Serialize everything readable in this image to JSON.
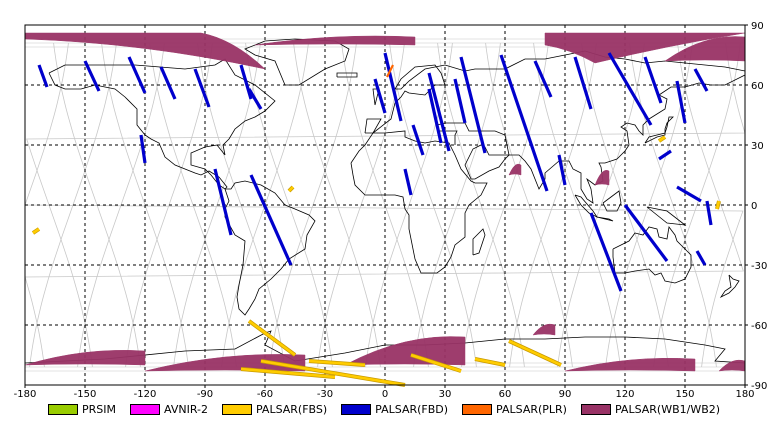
{
  "map": {
    "x_ticks": [
      "-180",
      "-150",
      "-120",
      "-90",
      "-60",
      "-30",
      "0",
      "30",
      "60",
      "90",
      "120",
      "150",
      "180"
    ],
    "y_ticks": [
      "90",
      "60",
      "30",
      "0",
      "-30",
      "-60",
      "-90"
    ],
    "x_range": [
      -180,
      180
    ],
    "y_range": [
      -90,
      90
    ],
    "grid": "dashed",
    "coastline_color": "#000000",
    "orbit_track_color": "#c8c8c8"
  },
  "legend": {
    "placement": "bottom",
    "items": [
      {
        "label": "PRSIM",
        "color": "#99cc00"
      },
      {
        "label": "AVNIR-2",
        "color": "#ff00ff"
      },
      {
        "label": "PALSAR(FBS)",
        "color": "#ffcc00"
      },
      {
        "label": "PALSAR(FBD)",
        "color": "#0000cc"
      },
      {
        "label": "PALSAR(PLR)",
        "color": "#ff6600"
      },
      {
        "label": "PALSAR(WB1/WB2)",
        "color": "#993366"
      }
    ]
  },
  "coverage": {
    "fbd_strips": [
      [
        -173,
        70,
        -169,
        59
      ],
      [
        -150,
        72,
        -143,
        57
      ],
      [
        -128,
        74,
        -120,
        56
      ],
      [
        -112,
        69,
        -105,
        53
      ],
      [
        -95,
        68,
        -88,
        49
      ],
      [
        -72,
        70,
        -67,
        53
      ],
      [
        -68,
        58,
        -62,
        48
      ],
      [
        -122,
        35,
        -120,
        21
      ],
      [
        -85,
        18,
        -77,
        -15
      ],
      [
        -67,
        15,
        -47,
        -30
      ],
      [
        -5,
        63,
        0,
        46
      ],
      [
        0,
        76,
        8,
        42
      ],
      [
        14,
        40,
        19,
        25
      ],
      [
        22,
        66,
        32,
        27
      ],
      [
        10,
        18,
        13,
        5
      ],
      [
        22,
        58,
        28,
        31
      ],
      [
        38,
        74,
        50,
        26
      ],
      [
        58,
        75,
        81,
        7
      ],
      [
        75,
        72,
        83,
        54
      ],
      [
        95,
        74,
        103,
        48
      ],
      [
        112,
        76,
        133,
        40
      ],
      [
        130,
        74,
        138,
        51
      ],
      [
        146,
        62,
        150,
        41
      ],
      [
        137,
        23,
        143,
        27
      ],
      [
        103,
        -4,
        118,
        -43
      ],
      [
        120,
        0,
        141,
        -28
      ],
      [
        146,
        9,
        158,
        2
      ],
      [
        156,
        -23,
        160,
        -30
      ],
      [
        155,
        68,
        161,
        57
      ],
      [
        161,
        2,
        163,
        -10
      ],
      [
        87,
        25,
        90,
        10
      ],
      [
        35,
        63,
        40,
        41
      ]
    ],
    "fbs_strips": [
      [
        -68,
        -58,
        -45,
        -75
      ],
      [
        -62,
        -78,
        10,
        -90
      ],
      [
        -72,
        -82,
        -25,
        -86
      ],
      [
        13,
        -75,
        38,
        -83
      ],
      [
        45,
        -77,
        60,
        -80
      ],
      [
        62,
        -68,
        88,
        -80
      ],
      [
        -38,
        -78,
        -10,
        -80
      ],
      [
        -176,
        -14,
        -173,
        -12
      ],
      [
        166,
        -2,
        167,
        2
      ],
      [
        137,
        32,
        140,
        34
      ],
      [
        -48,
        7,
        -46,
        9
      ]
    ],
    "plr_strips": [
      [
        1,
        64,
        4,
        70
      ]
    ],
    "wb_patches": [
      {
        "lon0": -180,
        "lon1": -92,
        "lat_top": 86,
        "lat_bot": 83,
        "drop_lat": 68,
        "drop_lon": -60
      },
      {
        "lon0": -65,
        "lon1": 15,
        "lat_top": 84,
        "lat_bot": 80
      },
      {
        "lon0": 80,
        "lon1": 180,
        "lat_top": 86,
        "lat_bot": 80,
        "drop_lat": 71,
        "drop_lon": 105
      },
      {
        "lon0": 140,
        "lon1": 180,
        "lat_top": 84,
        "lat_bot": 72
      },
      {
        "lon0": -180,
        "lon1": -120,
        "lat_top": -73,
        "lat_bot": -80
      },
      {
        "lon0": -120,
        "lon1": -40,
        "lat_top": -75,
        "lat_bot": -83
      },
      {
        "lon0": -20,
        "lon1": 40,
        "lat_top": -66,
        "lat_bot": -80
      },
      {
        "lon0": 90,
        "lon1": 155,
        "lat_top": -77,
        "lat_bot": -83
      },
      {
        "lon0": 167,
        "lon1": 180,
        "lat_top": -78,
        "lat_bot": -83
      },
      {
        "lon0": 74,
        "lon1": 85,
        "lat_top": -60,
        "lat_bot": -65
      },
      {
        "lon0": 62,
        "lon1": 68,
        "lat_top": 20,
        "lat_bot": 15
      },
      {
        "lon0": 105,
        "lon1": 112,
        "lat_top": 17,
        "lat_bot": 10
      }
    ]
  },
  "coastlines": [
    [
      [
        -168,
        66
      ],
      [
        -160,
        70
      ],
      [
        -145,
        70
      ],
      [
        -125,
        70
      ],
      [
        -100,
        68
      ],
      [
        -85,
        70
      ],
      [
        -80,
        73
      ],
      [
        -75,
        65
      ],
      [
        -65,
        60
      ],
      [
        -55,
        52
      ],
      [
        -60,
        47
      ],
      [
        -65,
        44
      ],
      [
        -70,
        42
      ],
      [
        -75,
        38
      ],
      [
        -78,
        33
      ],
      [
        -81,
        30
      ],
      [
        -80,
        25
      ],
      [
        -84,
        30
      ],
      [
        -90,
        29
      ],
      [
        -97,
        26
      ],
      [
        -97,
        20
      ],
      [
        -90,
        18
      ],
      [
        -87,
        15
      ],
      [
        -83,
        10
      ],
      [
        -80,
        8
      ],
      [
        -79,
        9
      ],
      [
        -83,
        14
      ],
      [
        -88,
        17
      ],
      [
        -92,
        15
      ],
      [
        -95,
        16
      ],
      [
        -105,
        20
      ],
      [
        -110,
        24
      ],
      [
        -113,
        31
      ],
      [
        -117,
        33
      ],
      [
        -120,
        35
      ],
      [
        -124,
        40
      ],
      [
        -124,
        48
      ],
      [
        -130,
        54
      ],
      [
        -135,
        58
      ],
      [
        -145,
        60
      ],
      [
        -152,
        58
      ],
      [
        -160,
        58
      ],
      [
        -165,
        60
      ],
      [
        -168,
        66
      ]
    ],
    [
      [
        -80,
        8
      ],
      [
        -77,
        8
      ],
      [
        -75,
        11
      ],
      [
        -70,
        12
      ],
      [
        -62,
        10
      ],
      [
        -55,
        6
      ],
      [
        -50,
        0
      ],
      [
        -45,
        -2
      ],
      [
        -38,
        -5
      ],
      [
        -35,
        -8
      ],
      [
        -39,
        -15
      ],
      [
        -40,
        -22
      ],
      [
        -48,
        -27
      ],
      [
        -52,
        -32
      ],
      [
        -57,
        -37
      ],
      [
        -63,
        -42
      ],
      [
        -65,
        -47
      ],
      [
        -68,
        -52
      ],
      [
        -70,
        -55
      ],
      [
        -73,
        -52
      ],
      [
        -74,
        -46
      ],
      [
        -73,
        -40
      ],
      [
        -71,
        -30
      ],
      [
        -70,
        -18
      ],
      [
        -75,
        -15
      ],
      [
        -80,
        -6
      ],
      [
        -80,
        -2
      ],
      [
        -78,
        2
      ],
      [
        -79,
        5
      ],
      [
        -80,
        8
      ]
    ],
    [
      [
        -50,
        60
      ],
      [
        -43,
        60
      ],
      [
        -30,
        68
      ],
      [
        -20,
        72
      ],
      [
        -18,
        78
      ],
      [
        -25,
        82
      ],
      [
        -45,
        83
      ],
      [
        -60,
        82
      ],
      [
        -70,
        78
      ],
      [
        -65,
        75
      ],
      [
        -55,
        72
      ],
      [
        -50,
        60
      ]
    ],
    [
      [
        -10,
        36
      ],
      [
        -6,
        36
      ],
      [
        -2,
        43
      ],
      [
        -9,
        43
      ],
      [
        -10,
        36
      ]
    ],
    [
      [
        -6,
        36
      ],
      [
        3,
        43
      ],
      [
        5,
        51
      ],
      [
        8,
        54
      ],
      [
        10,
        57
      ],
      [
        12,
        56
      ],
      [
        20,
        55
      ],
      [
        25,
        60
      ],
      [
        30,
        60
      ],
      [
        28,
        66
      ],
      [
        25,
        70
      ],
      [
        15,
        69
      ],
      [
        8,
        63
      ],
      [
        5,
        58
      ],
      [
        8,
        58
      ],
      [
        12,
        62
      ],
      [
        20,
        68
      ],
      [
        30,
        70
      ],
      [
        40,
        67
      ],
      [
        45,
        68
      ],
      [
        60,
        68
      ],
      [
        70,
        73
      ],
      [
        80,
        73
      ],
      [
        90,
        75
      ],
      [
        100,
        77
      ],
      [
        110,
        74
      ],
      [
        120,
        73
      ],
      [
        130,
        71
      ],
      [
        140,
        72
      ],
      [
        150,
        71
      ],
      [
        160,
        70
      ],
      [
        170,
        69
      ],
      [
        180,
        67
      ]
    ],
    [
      [
        -17,
        21
      ],
      [
        -16,
        15
      ],
      [
        -15,
        10
      ],
      [
        -10,
        5
      ],
      [
        -5,
        5
      ],
      [
        5,
        5
      ],
      [
        9,
        4
      ],
      [
        10,
        -2
      ],
      [
        12,
        -5
      ],
      [
        12,
        -12
      ],
      [
        13,
        -17
      ],
      [
        15,
        -27
      ],
      [
        18,
        -34
      ],
      [
        22,
        -34
      ],
      [
        26,
        -34
      ],
      [
        30,
        -31
      ],
      [
        33,
        -26
      ],
      [
        35,
        -20
      ],
      [
        40,
        -16
      ],
      [
        40,
        -10
      ],
      [
        40,
        -4
      ],
      [
        42,
        0
      ],
      [
        48,
        5
      ],
      [
        51,
        11
      ],
      [
        45,
        11
      ],
      [
        43,
        12
      ],
      [
        38,
        18
      ],
      [
        35,
        25
      ],
      [
        32,
        31
      ],
      [
        25,
        32
      ],
      [
        20,
        31
      ],
      [
        15,
        32
      ],
      [
        10,
        34
      ],
      [
        10,
        37
      ],
      [
        0,
        36
      ],
      [
        -6,
        36
      ],
      [
        -10,
        30
      ],
      [
        -13,
        27
      ],
      [
        -17,
        21
      ]
    ],
    [
      [
        35,
        30
      ],
      [
        35,
        35
      ],
      [
        36,
        37
      ],
      [
        27,
        37
      ],
      [
        26,
        40
      ],
      [
        30,
        41
      ],
      [
        40,
        41
      ],
      [
        42,
        37
      ],
      [
        45,
        37
      ],
      [
        50,
        37
      ],
      [
        55,
        37
      ],
      [
        60,
        35
      ],
      [
        62,
        25
      ],
      [
        57,
        25
      ],
      [
        52,
        25
      ],
      [
        50,
        29
      ],
      [
        48,
        30
      ],
      [
        44,
        28
      ],
      [
        40,
        20
      ],
      [
        43,
        13
      ],
      [
        45,
        13
      ],
      [
        52,
        17
      ],
      [
        57,
        19
      ],
      [
        60,
        23
      ],
      [
        62,
        25
      ]
    ],
    [
      [
        62,
        25
      ],
      [
        67,
        25
      ],
      [
        70,
        22
      ],
      [
        73,
        18
      ],
      [
        77,
        8
      ],
      [
        80,
        13
      ],
      [
        80,
        16
      ],
      [
        87,
        22
      ],
      [
        92,
        22
      ],
      [
        94,
        18
      ],
      [
        98,
        16
      ],
      [
        98,
        8
      ],
      [
        101,
        3
      ],
      [
        104,
        1
      ],
      [
        103,
        8
      ],
      [
        101,
        13
      ],
      [
        105,
        10
      ],
      [
        109,
        12
      ],
      [
        108,
        19
      ],
      [
        107,
        21
      ],
      [
        110,
        21
      ],
      [
        116,
        23
      ],
      [
        120,
        27
      ],
      [
        122,
        30
      ],
      [
        121,
        37
      ],
      [
        118,
        39
      ],
      [
        121,
        41
      ],
      [
        125,
        40
      ],
      [
        127,
        37
      ],
      [
        129,
        35
      ],
      [
        129,
        40
      ],
      [
        132,
        43
      ],
      [
        140,
        48
      ],
      [
        141,
        53
      ],
      [
        137,
        55
      ],
      [
        143,
        59
      ],
      [
        150,
        59
      ],
      [
        157,
        61
      ],
      [
        163,
        60
      ],
      [
        170,
        60
      ],
      [
        180,
        65
      ]
    ],
    [
      [
        130,
        31
      ],
      [
        132,
        34
      ],
      [
        136,
        35
      ],
      [
        140,
        36
      ],
      [
        141,
        39
      ],
      [
        142,
        44
      ],
      [
        144,
        44
      ],
      [
        141,
        41
      ],
      [
        140,
        38
      ],
      [
        140,
        35
      ],
      [
        136,
        34
      ],
      [
        130,
        31
      ]
    ],
    [
      [
        114,
        -22
      ],
      [
        114,
        -26
      ],
      [
        115,
        -34
      ],
      [
        120,
        -34
      ],
      [
        125,
        -33
      ],
      [
        132,
        -32
      ],
      [
        135,
        -35
      ],
      [
        138,
        -34
      ],
      [
        140,
        -38
      ],
      [
        145,
        -39
      ],
      [
        150,
        -37
      ],
      [
        153,
        -31
      ],
      [
        153,
        -25
      ],
      [
        150,
        -22
      ],
      [
        146,
        -18
      ],
      [
        145,
        -15
      ],
      [
        142,
        -11
      ],
      [
        141,
        -17
      ],
      [
        137,
        -16
      ],
      [
        136,
        -12
      ],
      [
        132,
        -11
      ],
      [
        129,
        -15
      ],
      [
        125,
        -14
      ],
      [
        122,
        -18
      ],
      [
        114,
        -22
      ]
    ],
    [
      [
        172,
        -35
      ],
      [
        174,
        -37
      ],
      [
        177,
        -38
      ],
      [
        175,
        -41
      ],
      [
        172,
        -44
      ],
      [
        168,
        -46
      ],
      [
        170,
        -43
      ],
      [
        173,
        -41
      ],
      [
        172,
        -35
      ]
    ],
    [
      [
        95,
        5
      ],
      [
        98,
        4
      ],
      [
        104,
        -3
      ],
      [
        106,
        -6
      ],
      [
        102,
        -4
      ],
      [
        98,
        0
      ],
      [
        95,
        5
      ]
    ],
    [
      [
        106,
        -6
      ],
      [
        114,
        -8
      ],
      [
        112,
        -7
      ],
      [
        106,
        -6
      ]
    ],
    [
      [
        109,
        1
      ],
      [
        113,
        4
      ],
      [
        117,
        7
      ],
      [
        118,
        1
      ],
      [
        116,
        -3
      ],
      [
        111,
        -3
      ],
      [
        109,
        1
      ]
    ],
    [
      [
        131,
        -1
      ],
      [
        141,
        -3
      ],
      [
        150,
        -10
      ],
      [
        141,
        -9
      ],
      [
        131,
        -1
      ]
    ],
    [
      [
        -5,
        50
      ],
      [
        -3,
        58
      ],
      [
        -6,
        58
      ],
      [
        -5,
        50
      ]
    ],
    [
      [
        -24,
        64
      ],
      [
        -14,
        64
      ],
      [
        -14,
        66
      ],
      [
        -24,
        66
      ],
      [
        -24,
        64
      ]
    ],
    [
      [
        44,
        -25
      ],
      [
        47,
        -24
      ],
      [
        50,
        -15
      ],
      [
        49,
        -12
      ],
      [
        44,
        -17
      ],
      [
        44,
        -25
      ]
    ],
    [
      [
        -180,
        -79
      ],
      [
        -140,
        -77
      ],
      [
        -100,
        -73
      ],
      [
        -75,
        -72
      ],
      [
        -60,
        -64
      ],
      [
        -57,
        -63
      ],
      [
        -60,
        -70
      ],
      [
        -45,
        -78
      ],
      [
        -20,
        -74
      ],
      [
        0,
        -70
      ],
      [
        20,
        -70
      ],
      [
        40,
        -69
      ],
      [
        60,
        -67
      ],
      [
        80,
        -67
      ],
      [
        100,
        -66
      ],
      [
        120,
        -66
      ],
      [
        140,
        -67
      ],
      [
        160,
        -70
      ],
      [
        170,
        -72
      ],
      [
        165,
        -78
      ],
      [
        180,
        -79
      ]
    ]
  ]
}
